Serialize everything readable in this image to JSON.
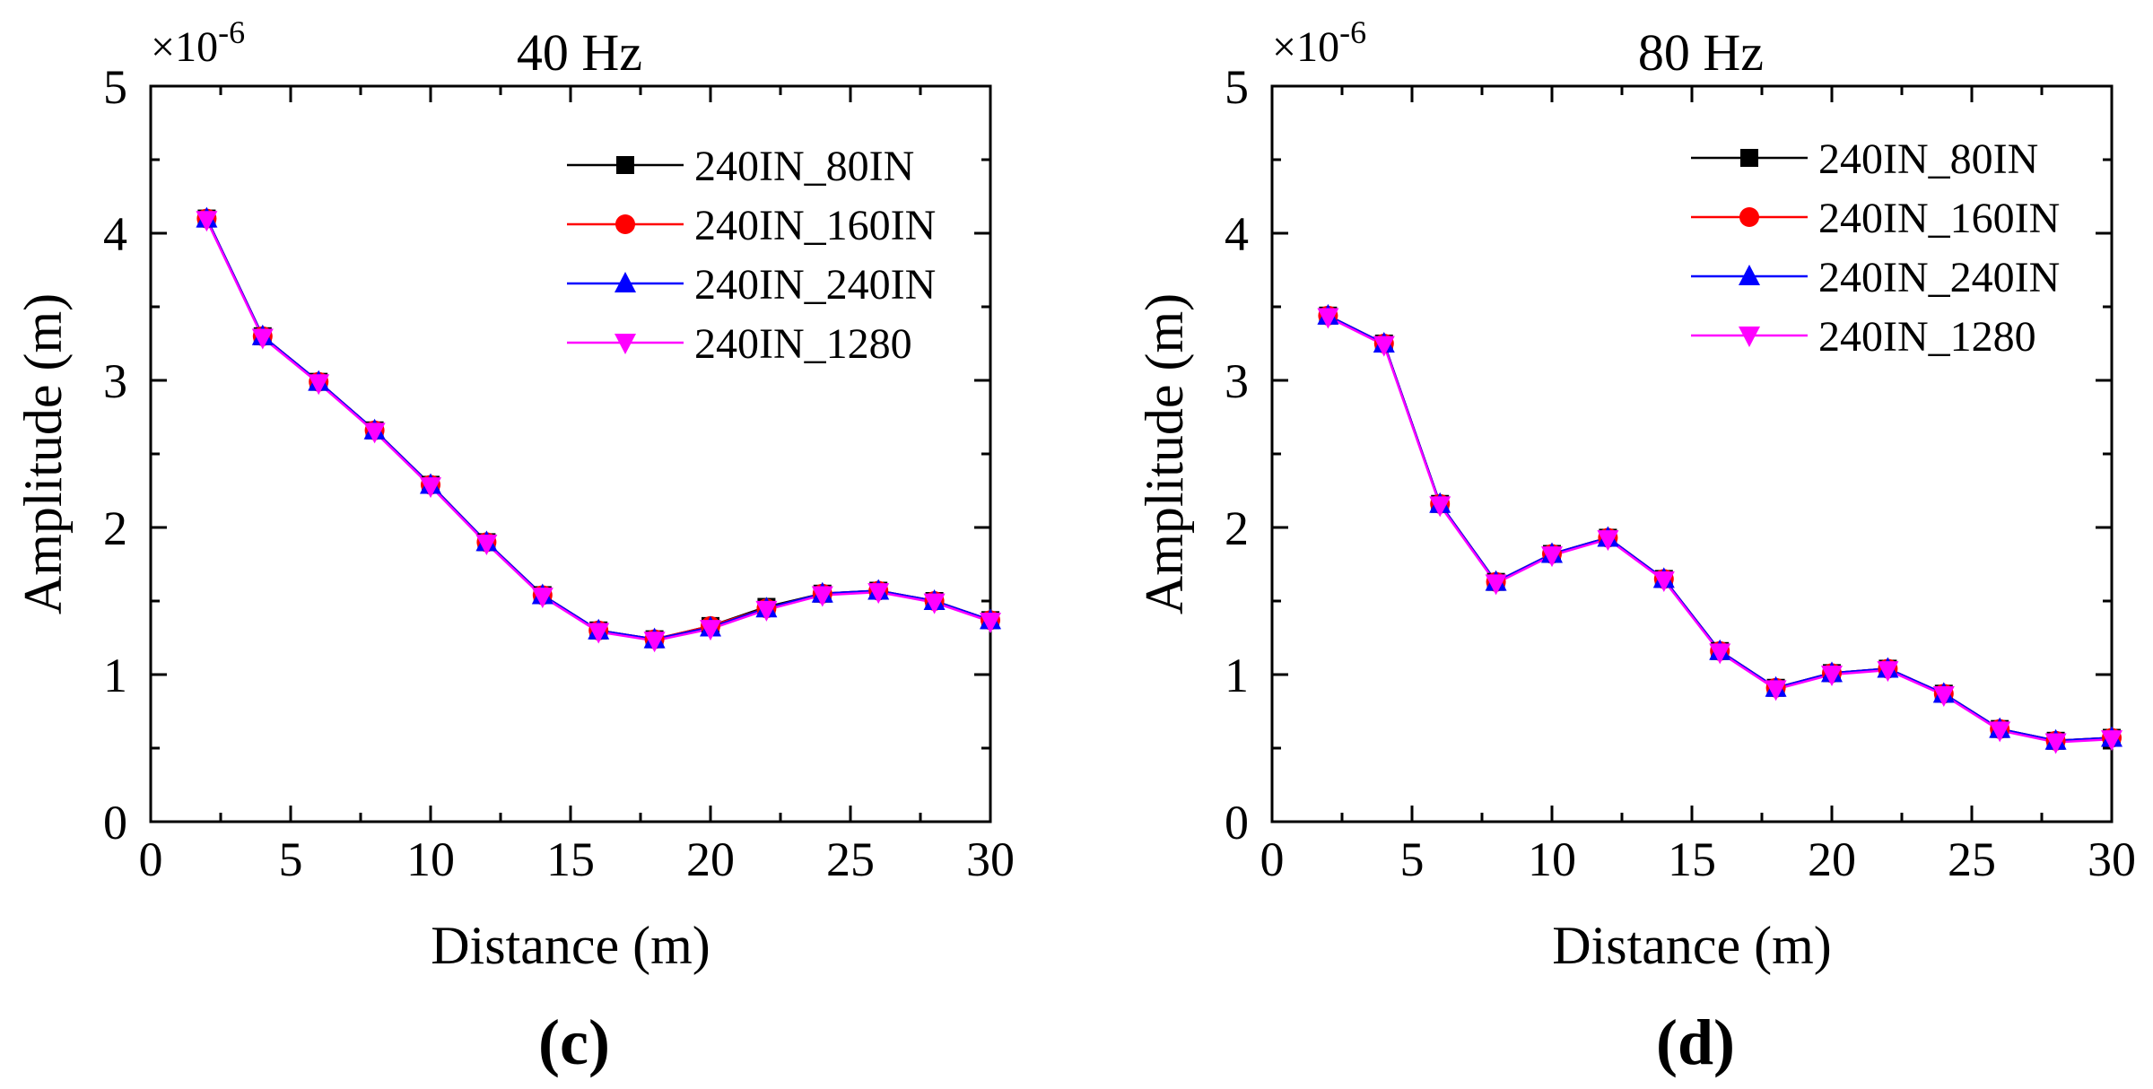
{
  "chart_data": [
    {
      "type": "line",
      "title": "40 Hz",
      "xlabel": "Distance (m)",
      "ylabel": "Amplitude (m)",
      "y_scale_label": "×10",
      "y_scale_exponent": "-6",
      "panel_label": "c",
      "xlim": [
        0,
        30
      ],
      "ylim": [
        0,
        5
      ],
      "xticks": [
        "0",
        "5",
        "10",
        "15",
        "20",
        "25",
        "30"
      ],
      "yticks": [
        "0",
        "1",
        "2",
        "3",
        "4",
        "5"
      ],
      "x": [
        2,
        4,
        6,
        8,
        10,
        12,
        14,
        16,
        18,
        20,
        22,
        24,
        26,
        28,
        30
      ],
      "series": [
        {
          "name": "240IN_80IN",
          "color": "#000000",
          "marker": "square",
          "values": [
            4.1,
            3.3,
            2.99,
            2.66,
            2.29,
            1.9,
            1.54,
            1.3,
            1.24,
            1.33,
            1.46,
            1.55,
            1.57,
            1.5,
            1.37
          ]
        },
        {
          "name": "240IN_160IN",
          "color": "#ff0000",
          "marker": "circle",
          "values": [
            4.1,
            3.3,
            2.99,
            2.66,
            2.29,
            1.9,
            1.54,
            1.3,
            1.24,
            1.33,
            1.45,
            1.55,
            1.57,
            1.5,
            1.37
          ]
        },
        {
          "name": "240IN_240IN",
          "color": "#0000ff",
          "marker": "triangle-up",
          "values": [
            4.1,
            3.3,
            2.99,
            2.66,
            2.29,
            1.9,
            1.54,
            1.3,
            1.24,
            1.32,
            1.45,
            1.55,
            1.57,
            1.5,
            1.37
          ]
        },
        {
          "name": "240IN_1280",
          "color": "#ff00ff",
          "marker": "triangle-down",
          "values": [
            4.09,
            3.29,
            2.98,
            2.65,
            2.28,
            1.89,
            1.53,
            1.29,
            1.23,
            1.31,
            1.44,
            1.54,
            1.56,
            1.49,
            1.36
          ]
        }
      ]
    },
    {
      "type": "line",
      "title": "80 Hz",
      "xlabel": "Distance (m)",
      "ylabel": "Amplitude (m)",
      "y_scale_label": "×10",
      "y_scale_exponent": "-6",
      "panel_label": "d",
      "xlim": [
        0,
        30
      ],
      "ylim": [
        0,
        5
      ],
      "xticks": [
        "0",
        "5",
        "10",
        "15",
        "20",
        "25",
        "30"
      ],
      "yticks": [
        "0",
        "1",
        "2",
        "3",
        "4",
        "5"
      ],
      "x": [
        2,
        4,
        6,
        8,
        10,
        12,
        14,
        16,
        18,
        20,
        22,
        24,
        26,
        28,
        30
      ],
      "series": [
        {
          "name": "240IN_80IN",
          "color": "#000000",
          "marker": "square",
          "values": [
            3.44,
            3.25,
            2.16,
            1.63,
            1.82,
            1.93,
            1.65,
            1.16,
            0.91,
            1.01,
            1.04,
            0.87,
            0.63,
            0.55,
            0.57
          ]
        },
        {
          "name": "240IN_160IN",
          "color": "#ff0000",
          "marker": "circle",
          "values": [
            3.44,
            3.25,
            2.16,
            1.63,
            1.82,
            1.93,
            1.65,
            1.16,
            0.91,
            1.01,
            1.04,
            0.87,
            0.63,
            0.55,
            0.57
          ]
        },
        {
          "name": "240IN_240IN",
          "color": "#0000ff",
          "marker": "triangle-up",
          "values": [
            3.44,
            3.25,
            2.16,
            1.63,
            1.82,
            1.93,
            1.65,
            1.16,
            0.91,
            1.01,
            1.04,
            0.87,
            0.63,
            0.55,
            0.57
          ]
        },
        {
          "name": "240IN_1280",
          "color": "#ff00ff",
          "marker": "triangle-down",
          "values": [
            3.43,
            3.24,
            2.15,
            1.62,
            1.81,
            1.92,
            1.64,
            1.15,
            0.9,
            1.0,
            1.03,
            0.86,
            0.62,
            0.54,
            0.56
          ]
        }
      ]
    }
  ]
}
